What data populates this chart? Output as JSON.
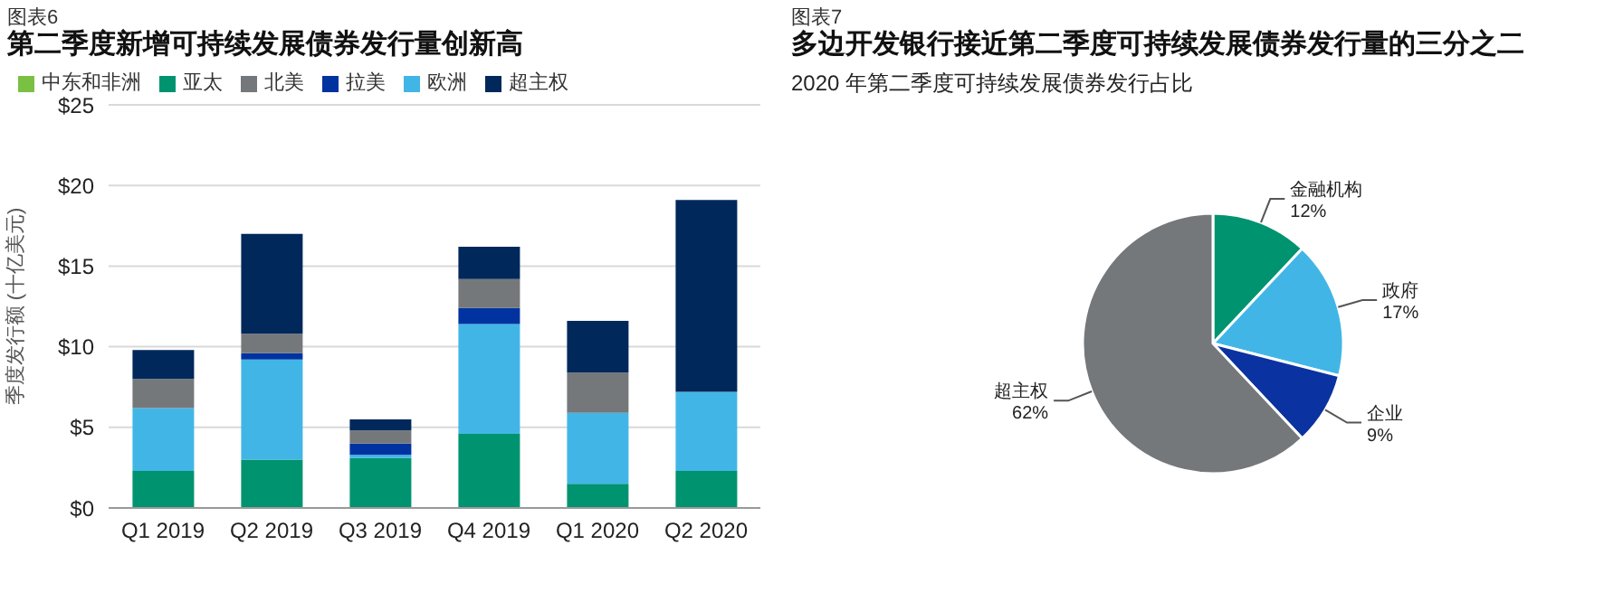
{
  "chart_data": [
    {
      "type": "bar",
      "title": "第二季度新增可持续发展债券发行量创新高",
      "annotations": [
        "图表6"
      ],
      "ylabel": "季度发行额 (十亿美元)",
      "categories": [
        "Q1 2019",
        "Q2 2019",
        "Q3 2019",
        "Q4 2019",
        "Q1 2020",
        "Q2 2020"
      ],
      "stacked": true,
      "series": [
        {
          "name": "亚太",
          "color": "#00936f",
          "values": [
            2.3,
            3.0,
            3.1,
            4.6,
            1.5,
            2.3
          ]
        },
        {
          "name": "欧洲",
          "color": "#41b6e6",
          "values": [
            3.9,
            6.2,
            0.2,
            6.8,
            4.4,
            4.9
          ]
        },
        {
          "name": "拉美",
          "color": "#0033a0",
          "values": [
            0,
            0.4,
            0.7,
            1.0,
            0,
            0
          ]
        },
        {
          "name": "中东和非洲",
          "color": "#7ac143",
          "values": [
            0,
            0,
            0,
            0,
            0,
            0
          ]
        },
        {
          "name": "北美",
          "color": "#75787b",
          "values": [
            1.8,
            1.2,
            0.8,
            1.8,
            2.5,
            0
          ]
        },
        {
          "name": "超主权",
          "color": "#00285a",
          "values": [
            1.8,
            6.2,
            0.7,
            2.0,
            3.2,
            11.9
          ]
        }
      ],
      "ylim": [
        0,
        25
      ],
      "yticks": [
        {
          "value": 0,
          "label": "$0"
        },
        {
          "value": 5,
          "label": "$5"
        },
        {
          "value": 10,
          "label": "$10"
        },
        {
          "value": 15,
          "label": "$15"
        },
        {
          "value": 20,
          "label": "$20"
        },
        {
          "value": 25,
          "label": "$25"
        }
      ],
      "grid": "y",
      "legend": "top left"
    },
    {
      "type": "pie",
      "title": "多边开发银行接近第二季度可持续发展债券发行量的三分之二",
      "subtitle": "2020 年第二季度可持续发展债券发行占比",
      "annotations": [
        "图表7"
      ],
      "categories": [
        "金融机构",
        "政府",
        "企业",
        "超主权"
      ],
      "values": [
        12,
        17,
        9,
        62
      ],
      "value_labels": [
        "12%",
        "17%",
        "9%",
        "62%"
      ],
      "colors": [
        "#00936f",
        "#41b6e6",
        "#0a32a0",
        "#75787b"
      ]
    }
  ]
}
